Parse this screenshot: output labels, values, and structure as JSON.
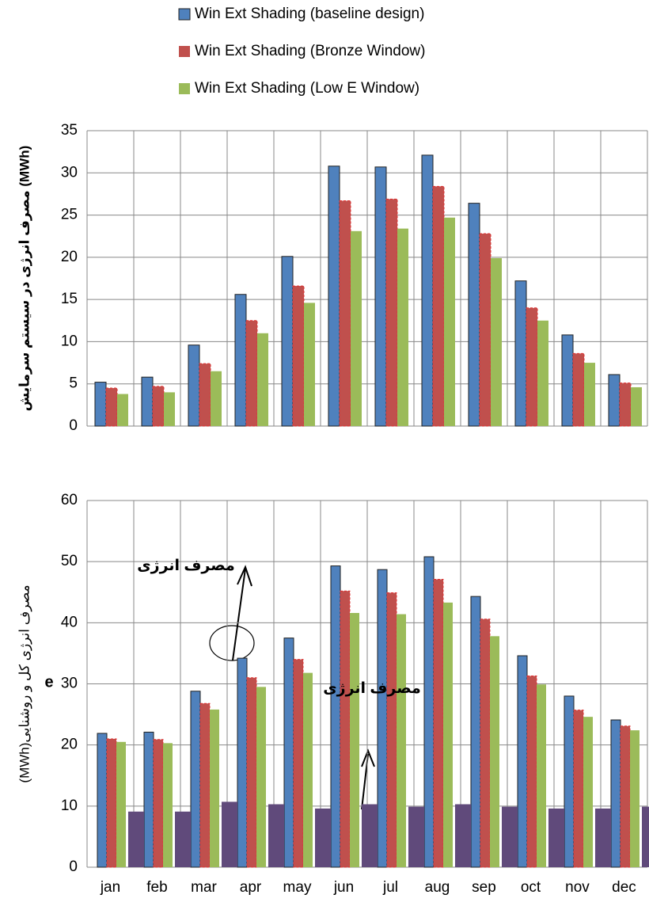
{
  "chart_data": [
    {
      "type": "bar",
      "y_label": "مصرف انرژی در سیستم سرمایش (MWh)",
      "categories": [
        null,
        null,
        null,
        null,
        null,
        null,
        null,
        null,
        null,
        null,
        null,
        null
      ],
      "series": [
        {
          "name": "Win Ext Shading (baseline design)",
          "color": "#4f81bd",
          "values": [
            5.2,
            5.8,
            9.6,
            15.6,
            20.1,
            30.8,
            30.7,
            32.1,
            26.4,
            17.2,
            10.8,
            6.1
          ]
        },
        {
          "name": "Win Ext Shading (Bronze Window)",
          "color": "#c0504d",
          "values": [
            4.5,
            4.7,
            7.4,
            12.5,
            16.6,
            26.7,
            26.9,
            28.4,
            22.8,
            14.0,
            8.6,
            5.1
          ]
        },
        {
          "name": "Win Ext Shading (Low E Window)",
          "color": "#9bbb59",
          "values": [
            3.8,
            4.0,
            6.5,
            11.0,
            14.6,
            23.1,
            23.4,
            24.7,
            19.9,
            12.5,
            7.5,
            4.6
          ]
        }
      ],
      "ylim": [
        0,
        35
      ],
      "yticks": [
        0,
        5,
        10,
        15,
        20,
        25,
        30,
        35
      ],
      "grid": true
    },
    {
      "type": "bar",
      "y_label": "(MWh)مصرف انرژی کل و روشنایی",
      "annotations": [
        "مصرف انرژی",
        "مصرف انرژی",
        "e"
      ],
      "categories": [
        "jan",
        "feb",
        "mar",
        "apr",
        "may",
        "jun",
        "jul",
        "aug",
        "sep",
        "oct",
        "nov",
        "dec"
      ],
      "series": [
        {
          "color": "#4f81bd",
          "values": [
            21.9,
            22.1,
            28.8,
            34.2,
            37.5,
            49.3,
            48.7,
            50.8,
            44.3,
            34.6,
            28.0,
            24.1
          ]
        },
        {
          "color": "#c0504d",
          "values": [
            21.0,
            20.9,
            26.8,
            31.0,
            34.0,
            45.2,
            44.9,
            47.1,
            40.6,
            31.3,
            25.7,
            23.1
          ]
        },
        {
          "color": "#9bbb59",
          "values": [
            20.5,
            20.3,
            25.8,
            29.5,
            31.8,
            41.6,
            41.4,
            43.3,
            37.8,
            29.9,
            24.6,
            22.4
          ]
        },
        {
          "color": "#604a7b",
          "values": [
            9.1,
            9.1,
            10.7,
            10.3,
            9.6,
            10.3,
            9.9,
            10.3,
            9.9,
            9.6,
            9.6,
            9.9
          ]
        }
      ],
      "ylim": [
        0,
        60
      ],
      "yticks": [
        0,
        10,
        20,
        30,
        40,
        50,
        60
      ],
      "grid": true
    }
  ]
}
